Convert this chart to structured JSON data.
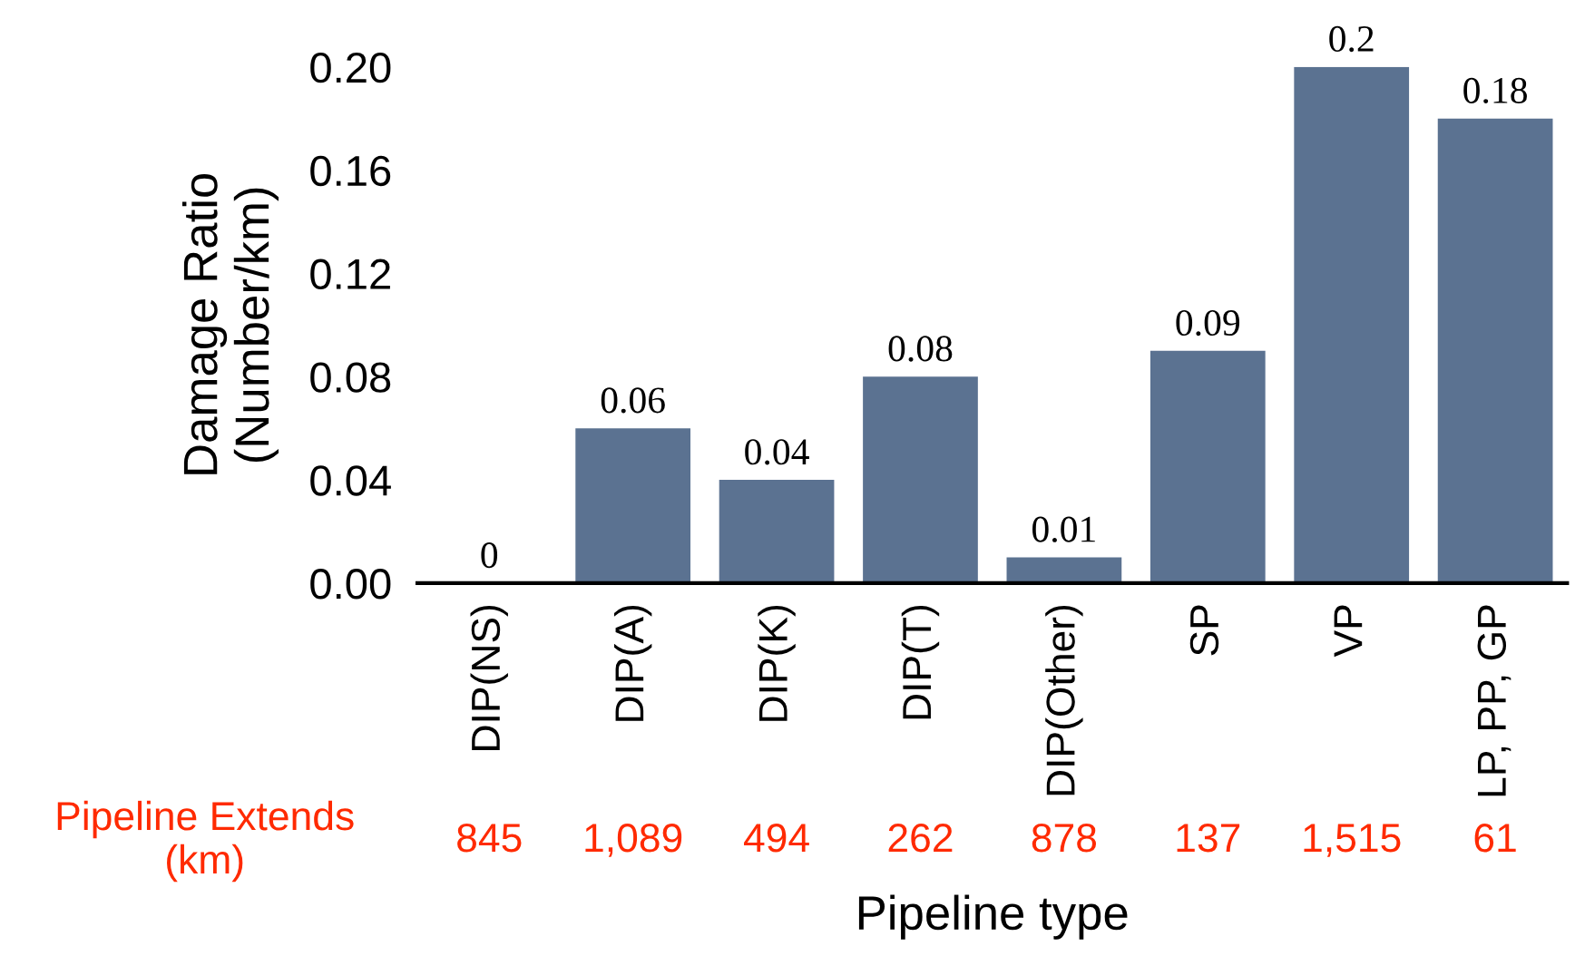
{
  "chart_data": {
    "type": "bar",
    "xlabel": "Pipeline type",
    "ylabel": "Damage Ratio\n(Number/km)",
    "categories": [
      "DIP(NS)",
      "DIP(A)",
      "DIP(K)",
      "DIP(T)",
      "DIP(Other)",
      "SP",
      "VP",
      "LP, PP, GP"
    ],
    "values": [
      0,
      0.06,
      0.04,
      0.08,
      0.01,
      0.09,
      0.2,
      0.18
    ],
    "color": "#5b7291",
    "ylim": [
      0,
      0.2
    ],
    "yticks": [
      {
        "value": 0,
        "label": "0.00"
      },
      {
        "value": 0.04,
        "label": "0.04"
      },
      {
        "value": 0.08,
        "label": "0.08"
      },
      {
        "value": 0.12,
        "label": "0.12"
      },
      {
        "value": 0.16,
        "label": "0.16"
      },
      {
        "value": 0.2,
        "label": "0.20"
      }
    ],
    "data_labels": true,
    "grid": false,
    "legend": false,
    "annotations": [
      "Pipeline Extends\n(km)",
      "845",
      "1,089",
      "494",
      "262",
      "878",
      "137",
      "1,515",
      "61"
    ]
  }
}
